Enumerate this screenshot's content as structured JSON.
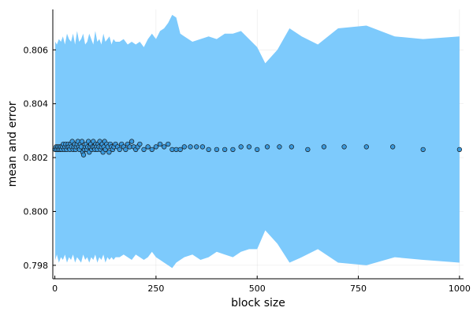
{
  "chart_data": {
    "type": "scatter",
    "title": "",
    "xlabel": "block size",
    "ylabel": "mean and error",
    "xlim": [
      -5,
      1010
    ],
    "ylim": [
      0.7975,
      0.8075
    ],
    "xticks": [
      0,
      250,
      500,
      750,
      1000
    ],
    "xtick_labels": [
      "0",
      "250",
      "500",
      "750",
      "1000"
    ],
    "yticks": [
      0.798,
      0.8,
      0.802,
      0.804,
      0.806
    ],
    "ytick_labels": [
      "0.798",
      "0.800",
      "0.802",
      "0.804",
      "0.806"
    ],
    "grid": true,
    "legend": "none",
    "colors": {
      "band": "#7dcafc",
      "point": "#3a9ade",
      "point_edge": "#1a1a1a"
    },
    "series": [
      {
        "kind": "band",
        "x": [
          1,
          5,
          10,
          15,
          20,
          25,
          30,
          35,
          40,
          45,
          50,
          55,
          60,
          65,
          70,
          75,
          80,
          85,
          90,
          95,
          100,
          105,
          110,
          115,
          120,
          125,
          130,
          135,
          140,
          145,
          150,
          160,
          170,
          180,
          190,
          200,
          210,
          220,
          230,
          240,
          250,
          260,
          270,
          280,
          290,
          300,
          310,
          320,
          340,
          360,
          380,
          400,
          420,
          440,
          460,
          480,
          500,
          520,
          550,
          580,
          610,
          650,
          700,
          770,
          840,
          910,
          1000
        ],
        "upper": [
          0.8063,
          0.8062,
          0.8064,
          0.8063,
          0.8065,
          0.8062,
          0.8066,
          0.8064,
          0.8063,
          0.8066,
          0.8062,
          0.8067,
          0.8063,
          0.8064,
          0.8066,
          0.8062,
          0.8063,
          0.8066,
          0.8064,
          0.8062,
          0.8067,
          0.8063,
          0.8064,
          0.8062,
          0.8066,
          0.8063,
          0.8064,
          0.8065,
          0.8062,
          0.8064,
          0.8063,
          0.8063,
          0.8064,
          0.8062,
          0.8063,
          0.8062,
          0.8063,
          0.8061,
          0.8064,
          0.8066,
          0.8064,
          0.8067,
          0.8068,
          0.807,
          0.8073,
          0.8072,
          0.8066,
          0.8065,
          0.8063,
          0.8064,
          0.8065,
          0.8064,
          0.8066,
          0.8066,
          0.8067,
          0.8064,
          0.8061,
          0.8055,
          0.806,
          0.8068,
          0.8065,
          0.8062,
          0.8068,
          0.8069,
          0.8065,
          0.8064,
          0.8065
        ],
        "lower": [
          0.7982,
          0.7984,
          0.7981,
          0.7983,
          0.7982,
          0.7984,
          0.7981,
          0.7983,
          0.7982,
          0.7984,
          0.7981,
          0.7983,
          0.7982,
          0.7981,
          0.7984,
          0.7982,
          0.7983,
          0.7981,
          0.7983,
          0.7982,
          0.7984,
          0.7981,
          0.7983,
          0.7982,
          0.7984,
          0.7981,
          0.7983,
          0.7982,
          0.7983,
          0.7982,
          0.7983,
          0.7983,
          0.7984,
          0.7983,
          0.7982,
          0.7984,
          0.7983,
          0.7982,
          0.7983,
          0.7985,
          0.7983,
          0.7982,
          0.7981,
          0.798,
          0.7979,
          0.7981,
          0.7982,
          0.7983,
          0.7984,
          0.7982,
          0.7983,
          0.7985,
          0.7984,
          0.7983,
          0.7985,
          0.7986,
          0.7986,
          0.7993,
          0.7988,
          0.7981,
          0.7983,
          0.7986,
          0.7981,
          0.798,
          0.7983,
          0.7982,
          0.7981
        ]
      },
      {
        "kind": "points",
        "x": [
          1,
          3,
          5,
          7,
          9,
          11,
          13,
          15,
          17,
          19,
          21,
          23,
          25,
          27,
          29,
          31,
          33,
          35,
          37,
          39,
          41,
          43,
          45,
          47,
          49,
          51,
          53,
          55,
          57,
          59,
          61,
          63,
          65,
          67,
          69,
          71,
          73,
          75,
          77,
          79,
          81,
          83,
          85,
          87,
          89,
          91,
          93,
          95,
          97,
          99,
          101,
          103,
          105,
          107,
          109,
          111,
          113,
          115,
          117,
          119,
          121,
          123,
          125,
          128,
          131,
          134,
          137,
          140,
          143,
          146,
          150,
          155,
          160,
          165,
          170,
          175,
          180,
          185,
          190,
          195,
          200,
          205,
          210,
          220,
          230,
          240,
          250,
          260,
          270,
          280,
          290,
          300,
          310,
          320,
          335,
          350,
          365,
          380,
          400,
          420,
          440,
          460,
          480,
          500,
          525,
          555,
          585,
          625,
          665,
          715,
          770,
          835,
          910,
          1000
        ],
        "y": [
          0.8023,
          0.8024,
          0.8023,
          0.8024,
          0.8023,
          0.8024,
          0.8023,
          0.8024,
          0.8023,
          0.8024,
          0.8025,
          0.8023,
          0.8024,
          0.8025,
          0.8023,
          0.8024,
          0.8025,
          0.8024,
          0.8023,
          0.8025,
          0.8024,
          0.8026,
          0.8023,
          0.8024,
          0.8025,
          0.8023,
          0.8024,
          0.8025,
          0.8026,
          0.8024,
          0.8023,
          0.8025,
          0.8024,
          0.8026,
          0.8022,
          0.8021,
          0.8023,
          0.8024,
          0.8025,
          0.8023,
          0.8024,
          0.8026,
          0.8022,
          0.8024,
          0.8025,
          0.8023,
          0.8024,
          0.8026,
          0.8024,
          0.8023,
          0.8025,
          0.8024,
          0.8023,
          0.8025,
          0.8024,
          0.8026,
          0.8023,
          0.8024,
          0.8025,
          0.8022,
          0.8024,
          0.8026,
          0.8023,
          0.8025,
          0.8024,
          0.8022,
          0.8025,
          0.8024,
          0.8023,
          0.8024,
          0.8025,
          0.8024,
          0.8023,
          0.8025,
          0.8024,
          0.8023,
          0.8025,
          0.8024,
          0.8026,
          0.8024,
          0.8023,
          0.8024,
          0.8025,
          0.8023,
          0.8024,
          0.8023,
          0.8024,
          0.8025,
          0.8024,
          0.8025,
          0.8023,
          0.8023,
          0.8023,
          0.8024,
          0.8024,
          0.8024,
          0.8024,
          0.8023,
          0.8023,
          0.8023,
          0.8023,
          0.8024,
          0.8024,
          0.8023,
          0.8024,
          0.8024,
          0.8024,
          0.8023,
          0.8024,
          0.8024,
          0.8024,
          0.8024,
          0.8023,
          0.8023
        ]
      }
    ]
  }
}
